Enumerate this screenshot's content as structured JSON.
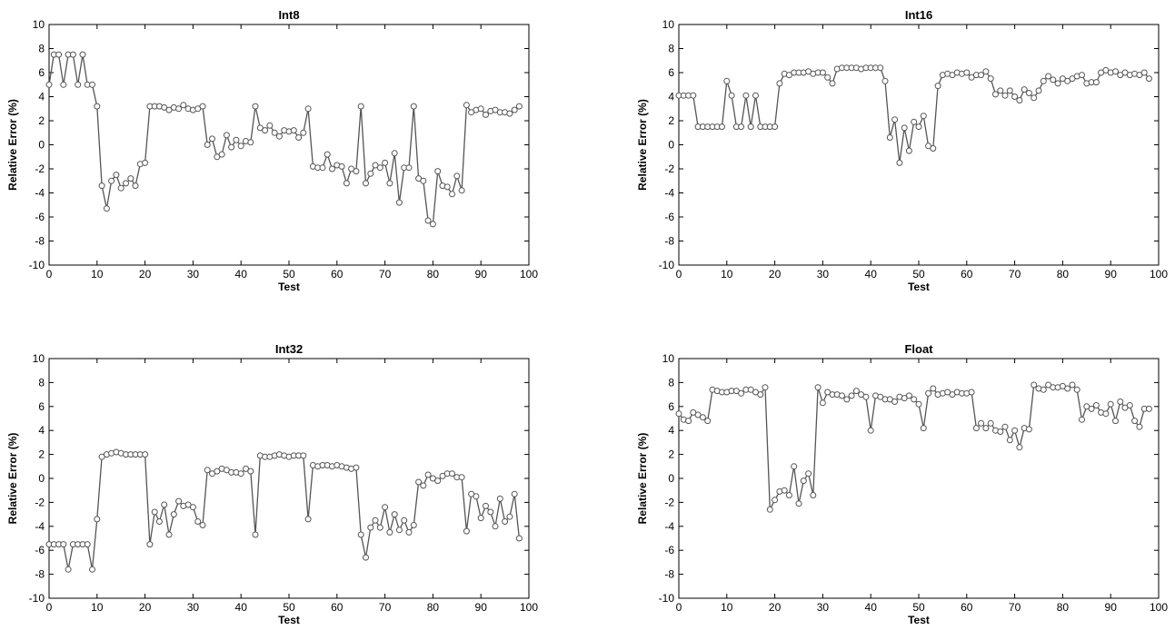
{
  "chart_data": [
    {
      "type": "line",
      "title": "Int8",
      "xlabel": "Test",
      "ylabel": "Relative Error (%)",
      "xlim": [
        0,
        100
      ],
      "ylim": [
        -10,
        10
      ],
      "xticks": [
        "0",
        "10",
        "20",
        "30",
        "40",
        "50",
        "60",
        "70",
        "80",
        "90",
        "100"
      ],
      "yticks": [
        "-10",
        "-8",
        "-6",
        "-4",
        "-2",
        "0",
        "2",
        "4",
        "6",
        "8",
        "10"
      ],
      "grid": false,
      "series": [
        {
          "color": "#555555",
          "marker": "circle",
          "x": [
            0,
            1,
            2,
            3,
            4,
            5,
            6,
            7,
            8,
            9,
            10,
            11,
            12,
            13,
            14,
            15,
            16,
            17,
            18,
            19,
            20,
            21,
            22,
            23,
            24,
            25,
            26,
            27,
            28,
            29,
            30,
            31,
            32,
            33,
            34,
            35,
            36,
            37,
            38,
            39,
            40,
            41,
            42,
            43,
            44,
            45,
            46,
            47,
            48,
            49,
            50,
            51,
            52,
            53,
            54,
            55,
            56,
            57,
            58,
            59,
            60,
            61,
            62,
            63,
            64,
            65,
            66,
            67,
            68,
            69,
            70,
            71,
            72,
            73,
            74,
            75,
            76,
            77,
            78,
            79,
            80,
            81,
            82,
            83,
            84,
            85,
            86,
            87,
            88,
            89,
            90,
            91,
            92,
            93,
            94,
            95,
            96,
            97,
            98
          ],
          "y": [
            5.0,
            7.5,
            7.5,
            5.0,
            7.5,
            7.5,
            5.0,
            7.5,
            5.0,
            5.0,
            3.2,
            -3.4,
            -5.3,
            -3.0,
            -2.5,
            -3.6,
            -3.2,
            -2.8,
            -3.4,
            -1.6,
            -1.5,
            3.2,
            3.2,
            3.2,
            3.1,
            2.9,
            3.1,
            3.0,
            3.3,
            3.0,
            2.9,
            3.0,
            3.2,
            0.0,
            0.5,
            -1.0,
            -0.8,
            0.8,
            -0.2,
            0.4,
            -0.1,
            0.3,
            0.2,
            3.2,
            1.4,
            1.2,
            1.6,
            1.0,
            0.7,
            1.2,
            1.1,
            1.2,
            0.6,
            1.0,
            3.0,
            -1.8,
            -1.9,
            -1.9,
            -0.8,
            -2.0,
            -1.7,
            -1.8,
            -3.2,
            -2.0,
            -2.2,
            3.2,
            -3.2,
            -2.4,
            -1.7,
            -1.9,
            -1.5,
            -3.2,
            -0.7,
            -4.8,
            -1.9,
            -1.9,
            3.2,
            -2.8,
            -3.0,
            -6.3,
            -6.6,
            -2.2,
            -3.4,
            -3.5,
            -4.1,
            -2.6,
            -3.8,
            3.3,
            2.7,
            2.9,
            3.0,
            2.5,
            2.8,
            2.9,
            2.7,
            2.7,
            2.6,
            2.9,
            3.2
          ]
        }
      ]
    },
    {
      "type": "line",
      "title": "Int16",
      "xlabel": "Test",
      "ylabel": "Relative Error (%)",
      "xlim": [
        0,
        100
      ],
      "ylim": [
        -10,
        10
      ],
      "xticks": [
        "0",
        "10",
        "20",
        "30",
        "40",
        "50",
        "60",
        "70",
        "80",
        "90",
        "100"
      ],
      "yticks": [
        "-10",
        "-8",
        "-6",
        "-4",
        "-2",
        "0",
        "2",
        "4",
        "6",
        "8",
        "10"
      ],
      "grid": false,
      "series": [
        {
          "color": "#555555",
          "marker": "circle",
          "x": [
            0,
            1,
            2,
            3,
            4,
            5,
            6,
            7,
            8,
            9,
            10,
            11,
            12,
            13,
            14,
            15,
            16,
            17,
            18,
            19,
            20,
            21,
            22,
            23,
            24,
            25,
            26,
            27,
            28,
            29,
            30,
            31,
            32,
            33,
            34,
            35,
            36,
            37,
            38,
            39,
            40,
            41,
            42,
            43,
            44,
            45,
            46,
            47,
            48,
            49,
            50,
            51,
            52,
            53,
            54,
            55,
            56,
            57,
            58,
            59,
            60,
            61,
            62,
            63,
            64,
            65,
            66,
            67,
            68,
            69,
            70,
            71,
            72,
            73,
            74,
            75,
            76,
            77,
            78,
            79,
            80,
            81,
            82,
            83,
            84,
            85,
            86,
            87,
            88,
            89,
            90,
            91,
            92,
            93,
            94,
            95,
            96,
            97,
            98
          ],
          "y": [
            4.1,
            4.1,
            4.1,
            4.1,
            1.5,
            1.5,
            1.5,
            1.5,
            1.5,
            1.5,
            5.3,
            4.1,
            1.5,
            1.5,
            4.1,
            1.5,
            4.1,
            1.5,
            1.5,
            1.5,
            1.5,
            5.1,
            5.9,
            5.8,
            6.0,
            6.0,
            6.0,
            6.1,
            5.9,
            6.0,
            6.0,
            5.6,
            5.1,
            6.3,
            6.4,
            6.4,
            6.4,
            6.4,
            6.3,
            6.4,
            6.4,
            6.4,
            6.4,
            5.3,
            0.6,
            2.1,
            -1.5,
            1.4,
            -0.5,
            1.9,
            1.5,
            2.4,
            -0.1,
            -0.3,
            4.9,
            5.8,
            5.9,
            5.8,
            6.0,
            5.9,
            6.0,
            5.6,
            5.8,
            5.8,
            6.1,
            5.5,
            4.2,
            4.5,
            4.1,
            4.5,
            4.0,
            3.7,
            4.6,
            4.3,
            3.9,
            4.5,
            5.3,
            5.7,
            5.4,
            5.1,
            5.5,
            5.3,
            5.5,
            5.7,
            5.8,
            5.1,
            5.2,
            5.2,
            6.0,
            6.2,
            6.0,
            6.1,
            5.8,
            6.0,
            5.8,
            5.9,
            5.8,
            6.0,
            5.5
          ]
        }
      ]
    },
    {
      "type": "line",
      "title": "Int32",
      "xlabel": "Test",
      "ylabel": "Relative Error (%)",
      "xlim": [
        0,
        100
      ],
      "ylim": [
        -10,
        10
      ],
      "xticks": [
        "0",
        "10",
        "20",
        "30",
        "40",
        "50",
        "60",
        "70",
        "80",
        "90",
        "100"
      ],
      "yticks": [
        "-10",
        "-8",
        "-6",
        "-4",
        "-2",
        "0",
        "2",
        "4",
        "6",
        "8",
        "10"
      ],
      "grid": false,
      "series": [
        {
          "color": "#555555",
          "marker": "circle",
          "x": [
            0,
            1,
            2,
            3,
            4,
            5,
            6,
            7,
            8,
            9,
            10,
            11,
            12,
            13,
            14,
            15,
            16,
            17,
            18,
            19,
            20,
            21,
            22,
            23,
            24,
            25,
            26,
            27,
            28,
            29,
            30,
            31,
            32,
            33,
            34,
            35,
            36,
            37,
            38,
            39,
            40,
            41,
            42,
            43,
            44,
            45,
            46,
            47,
            48,
            49,
            50,
            51,
            52,
            53,
            54,
            55,
            56,
            57,
            58,
            59,
            60,
            61,
            62,
            63,
            64,
            65,
            66,
            67,
            68,
            69,
            70,
            71,
            72,
            73,
            74,
            75,
            76,
            77,
            78,
            79,
            80,
            81,
            82,
            83,
            84,
            85,
            86,
            87,
            88,
            89,
            90,
            91,
            92,
            93,
            94,
            95,
            96,
            97,
            98
          ],
          "y": [
            -5.5,
            -5.5,
            -5.5,
            -5.5,
            -7.6,
            -5.5,
            -5.5,
            -5.5,
            -5.5,
            -7.6,
            -3.4,
            1.8,
            2.0,
            2.1,
            2.2,
            2.1,
            2.0,
            2.0,
            2.0,
            2.0,
            2.0,
            -5.5,
            -2.8,
            -3.6,
            -2.2,
            -4.7,
            -3.0,
            -1.9,
            -2.3,
            -2.2,
            -2.4,
            -3.6,
            -3.9,
            0.7,
            0.4,
            0.6,
            0.8,
            0.7,
            0.5,
            0.5,
            0.4,
            0.8,
            0.6,
            -4.7,
            1.9,
            1.8,
            1.8,
            1.9,
            2.0,
            1.9,
            1.8,
            1.9,
            1.9,
            1.9,
            -3.4,
            1.1,
            1.0,
            1.1,
            1.1,
            1.0,
            1.1,
            1.0,
            0.9,
            0.8,
            0.9,
            -4.7,
            -6.6,
            -4.1,
            -3.5,
            -4.1,
            -2.4,
            -4.5,
            -3.0,
            -4.3,
            -3.5,
            -4.5,
            -3.9,
            -0.3,
            -0.6,
            0.3,
            0.0,
            -0.2,
            0.2,
            0.4,
            0.4,
            0.1,
            0.1,
            -4.4,
            -1.3,
            -1.5,
            -3.3,
            -2.3,
            -2.8,
            -4.0,
            -1.7,
            -3.6,
            -3.2,
            -1.3,
            -5.0
          ]
        }
      ]
    },
    {
      "type": "line",
      "title": "Float",
      "xlabel": "Test",
      "ylabel": "Relative Error (%)",
      "xlim": [
        0,
        100
      ],
      "ylim": [
        -10,
        10
      ],
      "xticks": [
        "0",
        "10",
        "20",
        "30",
        "40",
        "50",
        "60",
        "70",
        "80",
        "90",
        "100"
      ],
      "yticks": [
        "-10",
        "-8",
        "-6",
        "-4",
        "-2",
        "0",
        "2",
        "4",
        "6",
        "8",
        "10"
      ],
      "grid": false,
      "series": [
        {
          "color": "#555555",
          "marker": "circle",
          "x": [
            0,
            1,
            2,
            3,
            4,
            5,
            6,
            7,
            8,
            9,
            10,
            11,
            12,
            13,
            14,
            15,
            16,
            17,
            18,
            19,
            20,
            21,
            22,
            23,
            24,
            25,
            26,
            27,
            28,
            29,
            30,
            31,
            32,
            33,
            34,
            35,
            36,
            37,
            38,
            39,
            40,
            41,
            42,
            43,
            44,
            45,
            46,
            47,
            48,
            49,
            50,
            51,
            52,
            53,
            54,
            55,
            56,
            57,
            58,
            59,
            60,
            61,
            62,
            63,
            64,
            65,
            66,
            67,
            68,
            69,
            70,
            71,
            72,
            73,
            74,
            75,
            76,
            77,
            78,
            79,
            80,
            81,
            82,
            83,
            84,
            85,
            86,
            87,
            88,
            89,
            90,
            91,
            92,
            93,
            94,
            95,
            96,
            97,
            98
          ],
          "y": [
            5.4,
            4.9,
            4.8,
            5.5,
            5.3,
            5.1,
            4.8,
            7.4,
            7.3,
            7.2,
            7.2,
            7.3,
            7.3,
            7.1,
            7.4,
            7.4,
            7.2,
            7.0,
            7.6,
            -2.6,
            -1.8,
            -1.1,
            -1.0,
            -1.4,
            1.0,
            -2.1,
            -0.2,
            0.4,
            -1.4,
            7.6,
            6.3,
            7.2,
            7.0,
            7.0,
            6.9,
            6.6,
            6.9,
            7.3,
            7.0,
            6.8,
            4.0,
            6.9,
            6.8,
            6.6,
            6.6,
            6.4,
            6.8,
            6.7,
            6.9,
            6.6,
            6.2,
            4.2,
            7.1,
            7.5,
            7.0,
            7.1,
            7.2,
            7.0,
            7.2,
            7.1,
            7.1,
            7.2,
            4.2,
            4.6,
            4.2,
            4.6,
            4.0,
            3.9,
            4.3,
            3.2,
            4.0,
            2.6,
            4.2,
            4.1,
            7.8,
            7.5,
            7.4,
            7.8,
            7.6,
            7.6,
            7.7,
            7.5,
            7.8,
            7.4,
            4.9,
            6.0,
            5.8,
            6.1,
            5.5,
            5.4,
            6.2,
            4.8,
            6.4,
            5.9,
            6.1,
            4.8,
            4.3,
            5.8,
            5.8
          ]
        }
      ]
    }
  ]
}
